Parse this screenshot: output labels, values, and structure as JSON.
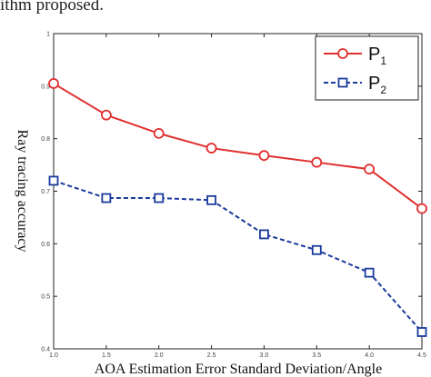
{
  "header_text": "ithm proposed.",
  "chart_data": {
    "type": "line",
    "xlabel": "AOA Estimation Error Standard Deviation/Angle",
    "ylabel": "Ray tracing accuracy",
    "x": [
      1.0,
      1.5,
      2.0,
      2.5,
      3.0,
      3.5,
      4.0,
      4.5
    ],
    "x_tick_labels": [
      "1.0",
      "1.5",
      "2.0",
      "2.5",
      "3.0",
      "3.5",
      "4.0",
      "4.5"
    ],
    "xlim": [
      1.0,
      4.5
    ],
    "y_tick_values": [
      0.4,
      0.5,
      0.6,
      0.7,
      0.8,
      0.9,
      1.0
    ],
    "y_tick_labels": [
      "0.4",
      "0.5",
      "0.6",
      "0.7",
      "0.8",
      "0.9",
      "1"
    ],
    "ylim": [
      0.4,
      1.0
    ],
    "grid": false,
    "legend_position": "top-right",
    "series": [
      {
        "name": "P1",
        "name_main": "P",
        "name_sub": "1",
        "color": "#e03030",
        "line_style": "solid",
        "marker": "circle",
        "values": [
          0.905,
          0.845,
          0.81,
          0.782,
          0.768,
          0.755,
          0.742,
          0.667
        ]
      },
      {
        "name": "P2",
        "name_main": "P",
        "name_sub": "2",
        "color": "#1a3a9c",
        "line_style": "dashed",
        "marker": "square",
        "values": [
          0.72,
          0.687,
          0.687,
          0.683,
          0.618,
          0.588,
          0.545,
          0.432
        ]
      }
    ]
  }
}
